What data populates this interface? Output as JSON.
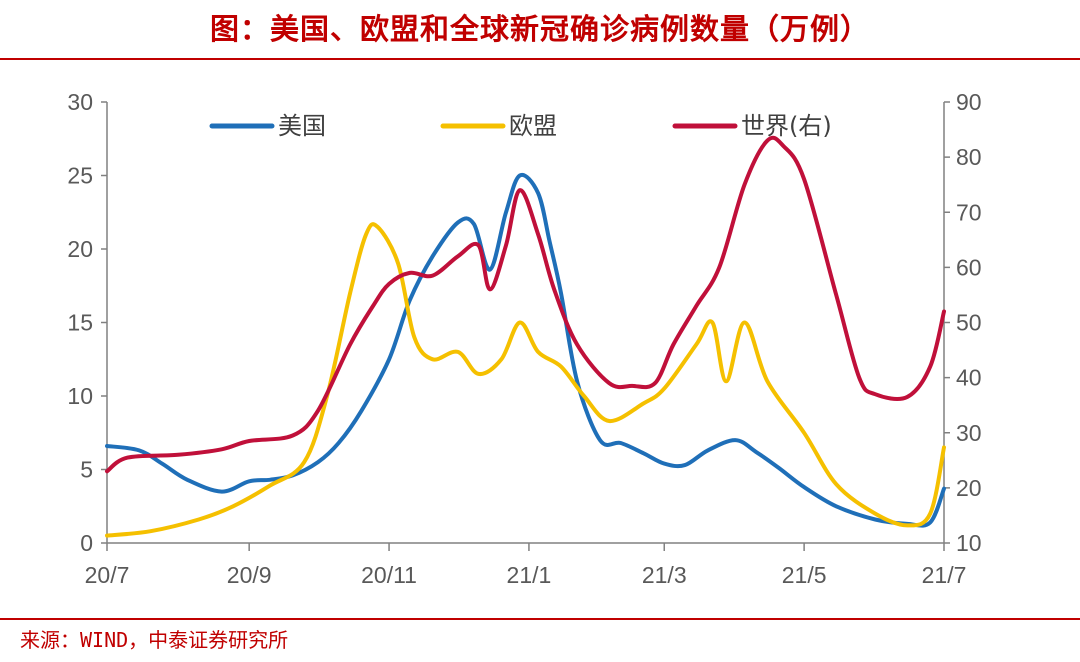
{
  "title": "图：美国、欧盟和全球新冠确诊病例数量（万例）",
  "source": "来源：WIND，中泰证券研究所",
  "colors": {
    "us": "#1f6fb8",
    "eu": "#f5c000",
    "world": "#c0103a",
    "accent": "#c00000"
  },
  "chart_data": {
    "type": "line",
    "title": "图：美国、欧盟和全球新冠确诊病例数量（万例）",
    "x_tick_labels": [
      "20/7",
      "20/9",
      "20/11",
      "21/1",
      "21/3",
      "21/5",
      "21/7"
    ],
    "x_tick_months": [
      "2020-07",
      "2020-09",
      "2020-11",
      "2021-01",
      "2021-03",
      "2021-05",
      "2021-07"
    ],
    "left_ylim": [
      0,
      30
    ],
    "left_yticks": [
      "0",
      "5",
      "10",
      "15",
      "20",
      "25",
      "30"
    ],
    "right_ylim": [
      10,
      90
    ],
    "right_yticks": [
      "10",
      "20",
      "30",
      "40",
      "50",
      "60",
      "70",
      "80",
      "90"
    ],
    "legend_placement": "top",
    "grid": false,
    "series": [
      {
        "name": "美国",
        "axis": "left",
        "x": [
          "2020-07-01",
          "2020-07-15",
          "2020-07-25",
          "2020-08-05",
          "2020-08-20",
          "2020-09-01",
          "2020-09-10",
          "2020-09-20",
          "2020-10-01",
          "2020-10-10",
          "2020-10-20",
          "2020-11-01",
          "2020-11-10",
          "2020-11-20",
          "2020-12-01",
          "2020-12-08",
          "2020-12-15",
          "2020-12-22",
          "2020-12-28",
          "2021-01-05",
          "2021-01-10",
          "2021-01-15",
          "2021-01-22",
          "2021-02-01",
          "2021-02-10",
          "2021-02-20",
          "2021-03-01",
          "2021-03-10",
          "2021-03-20",
          "2021-04-01",
          "2021-04-10",
          "2021-04-20",
          "2021-05-01",
          "2021-05-15",
          "2021-06-01",
          "2021-06-15",
          "2021-06-25",
          "2021-07-01"
        ],
        "y": [
          6.6,
          6.3,
          5.4,
          4.3,
          3.5,
          4.2,
          4.3,
          4.6,
          5.5,
          6.8,
          9.0,
          12.5,
          16.5,
          19.5,
          21.8,
          21.7,
          18.6,
          22.5,
          25.0,
          23.8,
          20.5,
          17.0,
          11.0,
          7.0,
          6.8,
          6.1,
          5.4,
          5.3,
          6.3,
          7.0,
          6.2,
          5.1,
          3.8,
          2.5,
          1.6,
          1.3,
          1.4,
          3.7
        ]
      },
      {
        "name": "欧盟",
        "axis": "left",
        "x": [
          "2020-07-01",
          "2020-07-20",
          "2020-08-10",
          "2020-08-25",
          "2020-09-10",
          "2020-09-25",
          "2020-10-05",
          "2020-10-15",
          "2020-10-22",
          "2020-10-27",
          "2020-11-05",
          "2020-11-12",
          "2020-11-20",
          "2020-12-01",
          "2020-12-10",
          "2020-12-20",
          "2020-12-28",
          "2021-01-05",
          "2021-01-15",
          "2021-01-25",
          "2021-02-05",
          "2021-02-20",
          "2021-03-01",
          "2021-03-15",
          "2021-03-22",
          "2021-03-28",
          "2021-04-05",
          "2021-04-15",
          "2021-05-01",
          "2021-05-15",
          "2021-06-01",
          "2021-06-15",
          "2021-06-25",
          "2021-07-01"
        ],
        "y": [
          0.5,
          0.8,
          1.6,
          2.5,
          3.9,
          5.5,
          10.0,
          17.0,
          21.0,
          21.5,
          19.0,
          14.0,
          12.5,
          13.0,
          11.5,
          12.5,
          15.0,
          13.0,
          12.0,
          10.0,
          8.3,
          9.5,
          10.5,
          13.5,
          15.0,
          11.0,
          15.0,
          11.0,
          7.5,
          4.0,
          2.0,
          1.2,
          2.0,
          6.5
        ]
      },
      {
        "name": "世界(右)",
        "axis": "right",
        "x": [
          "2020-07-01",
          "2020-07-10",
          "2020-08-01",
          "2020-08-20",
          "2020-09-01",
          "2020-09-20",
          "2020-10-01",
          "2020-10-15",
          "2020-10-25",
          "2020-11-01",
          "2020-11-10",
          "2020-11-20",
          "2020-12-01",
          "2020-12-10",
          "2020-12-15",
          "2020-12-22",
          "2020-12-28",
          "2021-01-05",
          "2021-01-12",
          "2021-01-22",
          "2021-02-05",
          "2021-02-15",
          "2021-02-25",
          "2021-03-05",
          "2021-03-15",
          "2021-03-25",
          "2021-04-05",
          "2021-04-15",
          "2021-04-22",
          "2021-05-01",
          "2021-05-15",
          "2021-05-25",
          "2021-06-01",
          "2021-06-15",
          "2021-06-25",
          "2021-07-01"
        ],
        "y": [
          23.0,
          25.5,
          26.0,
          27.0,
          28.5,
          29.5,
          34.0,
          46.0,
          53.0,
          57.0,
          59.0,
          58.5,
          62.0,
          64.0,
          56.0,
          64.0,
          74.0,
          66.0,
          56.0,
          46.0,
          39.0,
          38.5,
          39.0,
          46.0,
          53.0,
          60.0,
          75.0,
          83.0,
          82.0,
          76.0,
          55.0,
          40.0,
          37.0,
          36.5,
          42.0,
          52.0
        ]
      }
    ]
  }
}
